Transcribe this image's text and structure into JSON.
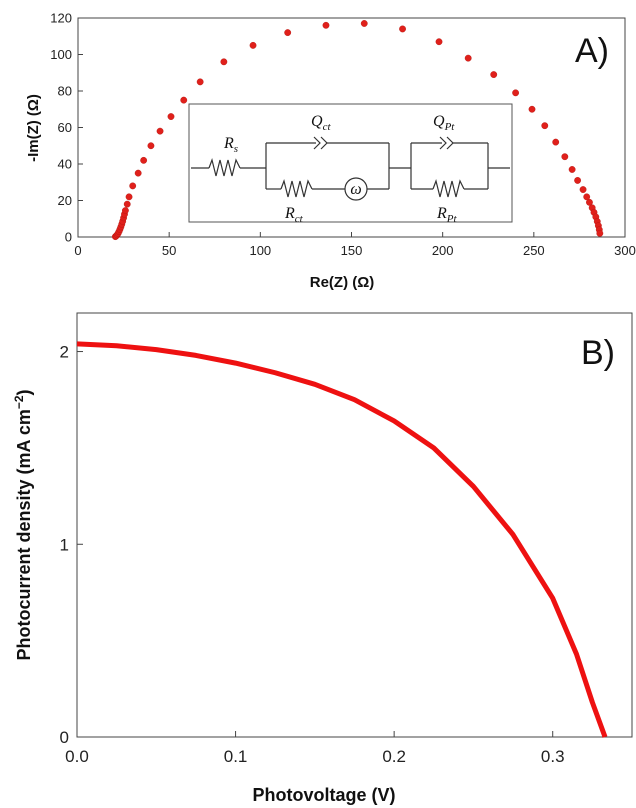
{
  "chart_data": [
    {
      "type": "scatter",
      "panel_label": "A)",
      "xlabel": "Re(Z) (Ω)",
      "ylabel": "-Im(Z) (Ω)",
      "xlim": [
        0,
        300
      ],
      "ylim": [
        0,
        120
      ],
      "xticks": [
        0,
        50,
        100,
        150,
        200,
        250,
        300
      ],
      "yticks": [
        0,
        20,
        40,
        60,
        80,
        100,
        120
      ],
      "marker_color": "#e0201b",
      "series": [
        {
          "x": [
            20.5,
            21.0,
            21.5,
            22.0,
            22.5,
            23.0,
            23.5,
            24.0,
            24.5,
            25.0,
            25.5,
            26.0,
            27.0,
            28.0,
            30.0,
            33.0,
            36.0,
            40.0,
            45.0,
            51.0,
            58.0,
            67.0,
            80.0,
            96.0,
            115.0,
            136.0,
            157.0,
            178.0,
            198.0,
            214.0,
            228.0,
            240.0,
            249.0,
            256.0,
            262.0,
            267.0,
            271.0,
            274.0,
            277.0,
            279.0,
            280.5,
            282.0,
            283.0,
            284.0,
            284.8,
            285.4,
            285.9,
            286.2
          ],
          "y": [
            0.2,
            0.6,
            1.2,
            2.0,
            3.0,
            4.2,
            5.5,
            7.0,
            8.6,
            10.5,
            12.5,
            14.5,
            18.0,
            22.0,
            28.0,
            35.0,
            42.0,
            50.0,
            58.0,
            66.0,
            75.0,
            85.0,
            96.0,
            105.0,
            112.0,
            116.0,
            117.0,
            114.0,
            107.0,
            98.0,
            89.0,
            79.0,
            70.0,
            61.0,
            52.0,
            44.0,
            37.0,
            31.0,
            26.0,
            22.0,
            19.0,
            16.0,
            13.5,
            11.0,
            8.5,
            6.2,
            4.0,
            2.0
          ]
        }
      ],
      "circuit": {
        "rs": {
          "main": "R",
          "sub": "s"
        },
        "qct": {
          "main": "Q",
          "sub": "ct"
        },
        "rct": {
          "main": "R",
          "sub": "ct"
        },
        "omega": "ω",
        "qpt": {
          "main": "Q",
          "sub": "Pt"
        },
        "rpt": {
          "main": "R",
          "sub": "Pt"
        }
      }
    },
    {
      "type": "line",
      "panel_label": "B)",
      "xlabel": "Photovoltage (V)",
      "ylabel": "Photocurrent density (mA cm",
      "ylabel_sup": "−2",
      "ylabel_end": ")",
      "xlim": [
        0,
        0.35
      ],
      "ylim": [
        0,
        2.2
      ],
      "xticks": [
        "0.0",
        "0.1",
        "0.2",
        "0.3"
      ],
      "yticks": [
        "0",
        "1",
        "2"
      ],
      "line_color": "#ee1111",
      "series": [
        {
          "x": [
            0.0,
            0.025,
            0.05,
            0.075,
            0.1,
            0.125,
            0.15,
            0.175,
            0.2,
            0.225,
            0.25,
            0.275,
            0.3,
            0.315,
            0.325,
            0.333
          ],
          "y": [
            2.04,
            2.03,
            2.01,
            1.98,
            1.94,
            1.89,
            1.83,
            1.75,
            1.64,
            1.5,
            1.3,
            1.05,
            0.72,
            0.43,
            0.18,
            0.0
          ]
        }
      ]
    }
  ]
}
